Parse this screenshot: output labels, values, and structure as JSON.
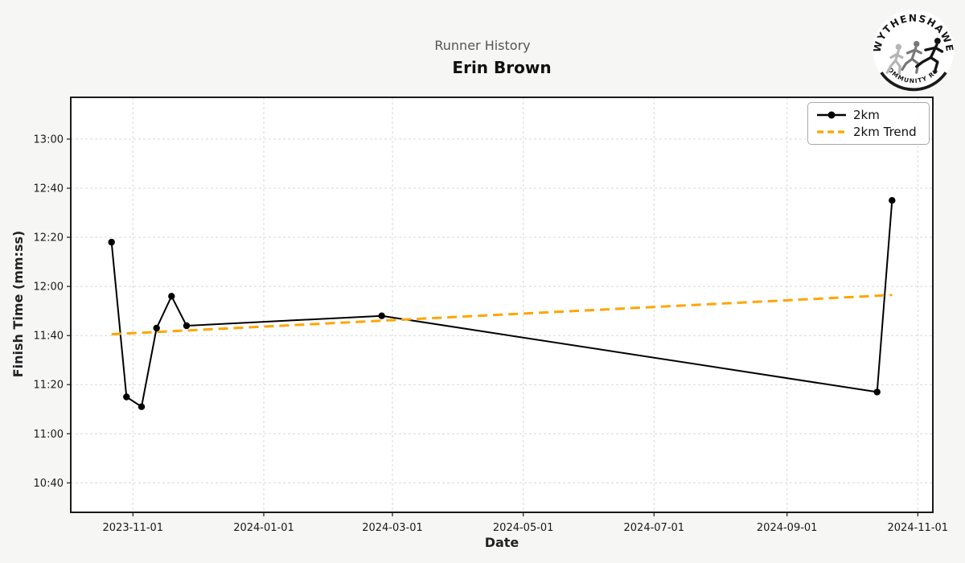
{
  "logo": {
    "top_text": "WYTHENSHAWE",
    "bottom_text": "COMMUNITY RUN"
  },
  "colors": {
    "line": "#000000",
    "trend": "#FFA500",
    "figure_bg": "#f6f6f5",
    "plot_bg": "#ffffff",
    "grid": "#d9d9d9",
    "spine": "#1a1a1a",
    "tick_label": "#1a1a1a",
    "subtitle": "#555555"
  },
  "chart_data": {
    "type": "line",
    "suptitle": "Runner History",
    "title": "Erin Brown",
    "xlabel": "Date",
    "ylabel": "Finish Time (mm:ss)",
    "grid": true,
    "legend_position": "upper right",
    "x_ticks": [
      "2023-11-01",
      "2024-01-01",
      "2024-03-01",
      "2024-05-01",
      "2024-07-01",
      "2024-09-01",
      "2024-11-01"
    ],
    "y_ticks": [
      "13:00",
      "12:40",
      "12:20",
      "12:00",
      "11:40",
      "11:20",
      "11:00",
      "10:40"
    ],
    "xlim": [
      "2023-10-03",
      "2024-11-08"
    ],
    "ylim": [
      "10:28",
      "13:17"
    ],
    "series": [
      {
        "name": "2km",
        "style": "solid_marker",
        "color": "#000000",
        "points": [
          [
            "2023-10-22",
            "12:18"
          ],
          [
            "2023-10-29",
            "11:15"
          ],
          [
            "2023-11-05",
            "11:11"
          ],
          [
            "2023-11-12",
            "11:43"
          ],
          [
            "2023-11-19",
            "11:56"
          ],
          [
            "2023-11-26",
            "11:44"
          ],
          [
            "2024-02-25",
            "11:48"
          ],
          [
            "2024-10-13",
            "11:17"
          ],
          [
            "2024-10-20",
            "12:35"
          ]
        ]
      },
      {
        "name": "2km Trend",
        "style": "dashed",
        "color": "#FFA500",
        "points": [
          [
            "2023-10-22",
            "11:40.5"
          ],
          [
            "2024-10-20",
            "11:56.5"
          ]
        ]
      }
    ]
  }
}
